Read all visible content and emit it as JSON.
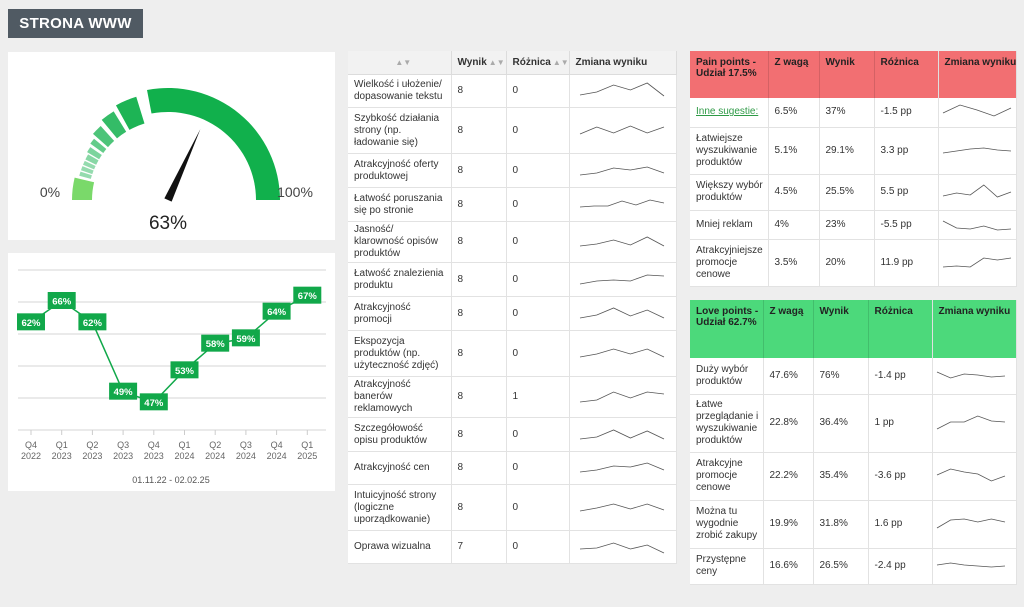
{
  "header": {
    "title": "STRONA WWW"
  },
  "gauge": {
    "value_label": "63%",
    "value": 0.63,
    "min_label": "0%",
    "max_label": "100%",
    "color": "#11b04c"
  },
  "trend": {
    "date_range": "01.11.22 - 02.02.25",
    "color": "#11a84a"
  },
  "chart_data": {
    "type": "line",
    "categories": [
      "Q4 2022",
      "Q1 2023",
      "Q2 2023",
      "Q3 2023",
      "Q4 2023",
      "Q1 2024",
      "Q2 2024",
      "Q3 2024",
      "Q4 2024",
      "Q1 2025"
    ],
    "tick_top": [
      "Q4",
      "Q1",
      "Q2",
      "Q3",
      "Q4",
      "Q1",
      "Q2",
      "Q3",
      "Q4",
      "Q1"
    ],
    "tick_bottom": [
      "2022",
      "2023",
      "2023",
      "2023",
      "2023",
      "2024",
      "2024",
      "2024",
      "2024",
      "2025"
    ],
    "values": [
      62,
      66,
      62,
      49,
      47,
      53,
      58,
      59,
      64,
      67
    ],
    "data_labels": [
      "62%",
      "66%",
      "62%",
      "49%",
      "47%",
      "53%",
      "58%",
      "59%",
      "64%",
      "67%"
    ],
    "ylim": [
      42,
      72
    ],
    "grid": true
  },
  "scores": {
    "headers": {
      "sort_icon": "sort-icon",
      "wynik": "Wynik",
      "roznica": "Różnica",
      "zmiana": "Zmiana wyniku"
    },
    "rows": [
      {
        "name": "Wielkość i ułożenie/ dopasowanie tekstu",
        "wynik": "8",
        "roznica": "0",
        "trend": [
          0.3,
          0.45,
          0.8,
          0.55,
          0.9,
          0.25
        ]
      },
      {
        "name": "Szybkość działania strony (np. ładowanie się)",
        "wynik": "8",
        "roznica": "0",
        "trend": [
          0.35,
          0.7,
          0.4,
          0.75,
          0.4,
          0.7
        ]
      },
      {
        "name": "Atrakcyjność oferty produktowej",
        "wynik": "8",
        "roznica": "0",
        "trend": [
          0.3,
          0.4,
          0.65,
          0.55,
          0.7,
          0.4
        ]
      },
      {
        "name": "Łatwość poruszania się po stronie",
        "wynik": "8",
        "roznica": "0",
        "trend": [
          0.4,
          0.45,
          0.45,
          0.7,
          0.5,
          0.75,
          0.6
        ]
      },
      {
        "name": "Jasność/ klarowność opisów produktów",
        "wynik": "8",
        "roznica": "0",
        "trend": [
          0.3,
          0.4,
          0.6,
          0.35,
          0.75,
          0.3
        ]
      },
      {
        "name": "Łatwość znalezienia produktu",
        "wynik": "8",
        "roznica": "0",
        "trend": [
          0.3,
          0.45,
          0.5,
          0.45,
          0.75,
          0.7
        ]
      },
      {
        "name": "Atrakcyjność promocji",
        "wynik": "8",
        "roznica": "0",
        "trend": [
          0.3,
          0.45,
          0.8,
          0.4,
          0.7,
          0.3
        ]
      },
      {
        "name": "Ekspozycja produktów (np. użyteczność zdjęć)",
        "wynik": "8",
        "roznica": "0",
        "trend": [
          0.35,
          0.5,
          0.75,
          0.5,
          0.75,
          0.35
        ]
      },
      {
        "name": "Atrakcyjność banerów reklamowych",
        "wynik": "8",
        "roznica": "1",
        "trend": [
          0.25,
          0.35,
          0.75,
          0.45,
          0.75,
          0.65
        ]
      },
      {
        "name": "Szczegółowość opisu produktów",
        "wynik": "8",
        "roznica": "0",
        "trend": [
          0.3,
          0.4,
          0.75,
          0.35,
          0.7,
          0.3
        ]
      },
      {
        "name": "Atrakcyjność cen",
        "wynik": "8",
        "roznica": "0",
        "trend": [
          0.3,
          0.4,
          0.6,
          0.55,
          0.75,
          0.4
        ]
      },
      {
        "name": "Intuicyjność strony (logiczne uporządkowanie)",
        "wynik": "8",
        "roznica": "0",
        "trend": [
          0.35,
          0.5,
          0.7,
          0.45,
          0.7,
          0.4
        ]
      },
      {
        "name": "Oprawa wizualna",
        "wynik": "7",
        "roznica": "0",
        "trend": [
          0.4,
          0.45,
          0.7,
          0.4,
          0.6,
          0.2
        ]
      }
    ]
  },
  "pain": {
    "headers": {
      "title": "Pain points - Udział 17.5%",
      "zwaga": "Z wagą",
      "wynik": "Wynik",
      "roznica": "Różnica",
      "zmiana": "Zmiana wyniku"
    },
    "color": "#f26f72",
    "rows": [
      {
        "name": "Inne sugestie:",
        "zwaga": "6.5%",
        "wynik": "37%",
        "roznica": "-1.5 pp",
        "trend": [
          0.45,
          0.85,
          0.6,
          0.3,
          0.7
        ]
      },
      {
        "name": "Łatwiejsze wyszukiwanie produktów",
        "zwaga": "5.1%",
        "wynik": "29.1%",
        "roznica": "3.3 pp",
        "trend": [
          0.4,
          0.5,
          0.6,
          0.65,
          0.55,
          0.5
        ]
      },
      {
        "name": "Większy wybór produktów",
        "zwaga": "4.5%",
        "wynik": "25.5%",
        "roznica": "5.5 pp",
        "trend": [
          0.3,
          0.45,
          0.35,
          0.85,
          0.25,
          0.5
        ]
      },
      {
        "name": "Mniej reklam",
        "zwaga": "4%",
        "wynik": "23%",
        "roznica": "-5.5 pp",
        "trend": [
          0.7,
          0.35,
          0.3,
          0.45,
          0.25,
          0.3
        ]
      },
      {
        "name": "Atrakcyjniejsze promocje cenowe",
        "zwaga": "3.5%",
        "wynik": "20%",
        "roznica": "11.9 pp",
        "trend": [
          0.3,
          0.35,
          0.3,
          0.75,
          0.65,
          0.75
        ]
      }
    ]
  },
  "love": {
    "headers": {
      "title": "Love points - Udział 62.7%",
      "zwaga": "Z wagą",
      "wynik": "Wynik",
      "roznica": "Różnica",
      "zmiana": "Zmiana wyniku"
    },
    "color": "#4cd97b",
    "rows": [
      {
        "name": "Duży wybór produktów",
        "zwaga": "47.6%",
        "wynik": "76%",
        "roznica": "-1.4 pp",
        "trend": [
          0.7,
          0.4,
          0.6,
          0.55,
          0.45,
          0.5
        ]
      },
      {
        "name": "Łatwe przeglądanie i wyszukiwanie produktów",
        "zwaga": "22.8%",
        "wynik": "36.4%",
        "roznica": "1 pp",
        "trend": [
          0.2,
          0.55,
          0.55,
          0.85,
          0.6,
          0.55
        ]
      },
      {
        "name": "Atrakcyjne promocje cenowe",
        "zwaga": "22.2%",
        "wynik": "35.4%",
        "roznica": "-3.6 pp",
        "trend": [
          0.55,
          0.85,
          0.7,
          0.6,
          0.25,
          0.5
        ]
      },
      {
        "name": "Można tu wygodnie zrobić zakupy",
        "zwaga": "19.9%",
        "wynik": "31.8%",
        "roznica": "1.6 pp",
        "trend": [
          0.3,
          0.7,
          0.75,
          0.6,
          0.75,
          0.6
        ]
      },
      {
        "name": "Przystępne ceny",
        "zwaga": "16.6%",
        "wynik": "26.5%",
        "roznica": "-2.4 pp",
        "trend": [
          0.55,
          0.65,
          0.55,
          0.5,
          0.45,
          0.5
        ]
      }
    ]
  }
}
